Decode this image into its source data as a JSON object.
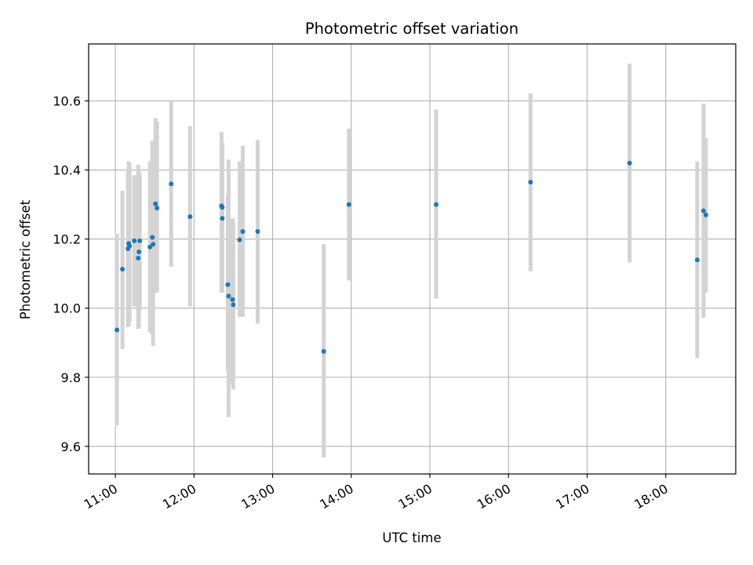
{
  "chart_data": {
    "type": "scatter",
    "title": "Photometric offset variation",
    "xlabel": "UTC time",
    "ylabel": "Photometric offset",
    "x_unit": "hour (UTC)",
    "xlim": [
      10.66,
      18.89
    ],
    "ylim": [
      9.52,
      10.765
    ],
    "grid": true,
    "marker_color": "#1f77b4",
    "errorbar_color": "#d3d3d3",
    "x_ticks": [
      {
        "value": 11,
        "label": "11:00"
      },
      {
        "value": 12,
        "label": "12:00"
      },
      {
        "value": 13,
        "label": "13:00"
      },
      {
        "value": 14,
        "label": "14:00"
      },
      {
        "value": 15,
        "label": "15:00"
      },
      {
        "value": 16,
        "label": "16:00"
      },
      {
        "value": 17,
        "label": "17:00"
      },
      {
        "value": 18,
        "label": "18:00"
      }
    ],
    "y_ticks": [
      {
        "value": 9.6,
        "label": "9.6"
      },
      {
        "value": 9.8,
        "label": "9.8"
      },
      {
        "value": 10.0,
        "label": "10.0"
      },
      {
        "value": 10.2,
        "label": "10.2"
      },
      {
        "value": 10.4,
        "label": "10.4"
      },
      {
        "value": 10.6,
        "label": "10.6"
      }
    ],
    "points": [
      {
        "x": 11.02,
        "y": 9.937,
        "lo": 9.66,
        "hi": 10.215
      },
      {
        "x": 11.09,
        "y": 10.113,
        "lo": 9.882,
        "hi": 10.34
      },
      {
        "x": 11.16,
        "y": 10.172,
        "lo": 9.945,
        "hi": 10.4
      },
      {
        "x": 11.17,
        "y": 10.187,
        "lo": 9.95,
        "hi": 10.425
      },
      {
        "x": 11.18,
        "y": 10.18,
        "lo": 9.96,
        "hi": 10.42
      },
      {
        "x": 11.24,
        "y": 10.195,
        "lo": 10.005,
        "hi": 10.385
      },
      {
        "x": 11.29,
        "y": 10.145,
        "lo": 9.94,
        "hi": 10.415
      },
      {
        "x": 11.3,
        "y": 10.163,
        "lo": 9.945,
        "hi": 10.395
      },
      {
        "x": 11.31,
        "y": 10.195,
        "lo": 9.995,
        "hi": 10.39
      },
      {
        "x": 11.44,
        "y": 10.177,
        "lo": 9.93,
        "hi": 10.425
      },
      {
        "x": 11.47,
        "y": 10.205,
        "lo": 9.925,
        "hi": 10.485
      },
      {
        "x": 11.48,
        "y": 10.185,
        "lo": 9.89,
        "hi": 10.44
      },
      {
        "x": 11.51,
        "y": 10.302,
        "lo": 10.045,
        "hi": 10.55
      },
      {
        "x": 11.53,
        "y": 10.29,
        "lo": 10.045,
        "hi": 10.54
      },
      {
        "x": 11.71,
        "y": 10.36,
        "lo": 10.12,
        "hi": 10.6
      },
      {
        "x": 11.95,
        "y": 10.265,
        "lo": 10.005,
        "hi": 10.527
      },
      {
        "x": 12.35,
        "y": 10.296,
        "lo": 10.045,
        "hi": 10.51
      },
      {
        "x": 12.36,
        "y": 10.292,
        "lo": 10.055,
        "hi": 10.48
      },
      {
        "x": 12.36,
        "y": 10.26,
        "lo": 10.045,
        "hi": 10.475
      },
      {
        "x": 12.43,
        "y": 10.068,
        "lo": 9.82,
        "hi": 10.33
      },
      {
        "x": 12.44,
        "y": 10.035,
        "lo": 9.685,
        "hi": 10.43
      },
      {
        "x": 12.49,
        "y": 10.025,
        "lo": 9.78,
        "hi": 10.26
      },
      {
        "x": 12.5,
        "y": 10.01,
        "lo": 9.765,
        "hi": 10.25
      },
      {
        "x": 12.58,
        "y": 10.198,
        "lo": 9.975,
        "hi": 10.425
      },
      {
        "x": 12.62,
        "y": 10.222,
        "lo": 9.975,
        "hi": 10.47
      },
      {
        "x": 12.81,
        "y": 10.222,
        "lo": 9.955,
        "hi": 10.487
      },
      {
        "x": 13.65,
        "y": 9.875,
        "lo": 9.568,
        "hi": 10.185
      },
      {
        "x": 13.97,
        "y": 10.3,
        "lo": 10.08,
        "hi": 10.52
      },
      {
        "x": 15.08,
        "y": 10.3,
        "lo": 10.028,
        "hi": 10.575
      },
      {
        "x": 16.28,
        "y": 10.365,
        "lo": 10.107,
        "hi": 10.622
      },
      {
        "x": 17.54,
        "y": 10.42,
        "lo": 10.132,
        "hi": 10.708
      },
      {
        "x": 18.4,
        "y": 10.14,
        "lo": 9.855,
        "hi": 10.425
      },
      {
        "x": 18.48,
        "y": 10.282,
        "lo": 9.972,
        "hi": 10.592
      },
      {
        "x": 18.51,
        "y": 10.27,
        "lo": 10.045,
        "hi": 10.492
      }
    ]
  }
}
